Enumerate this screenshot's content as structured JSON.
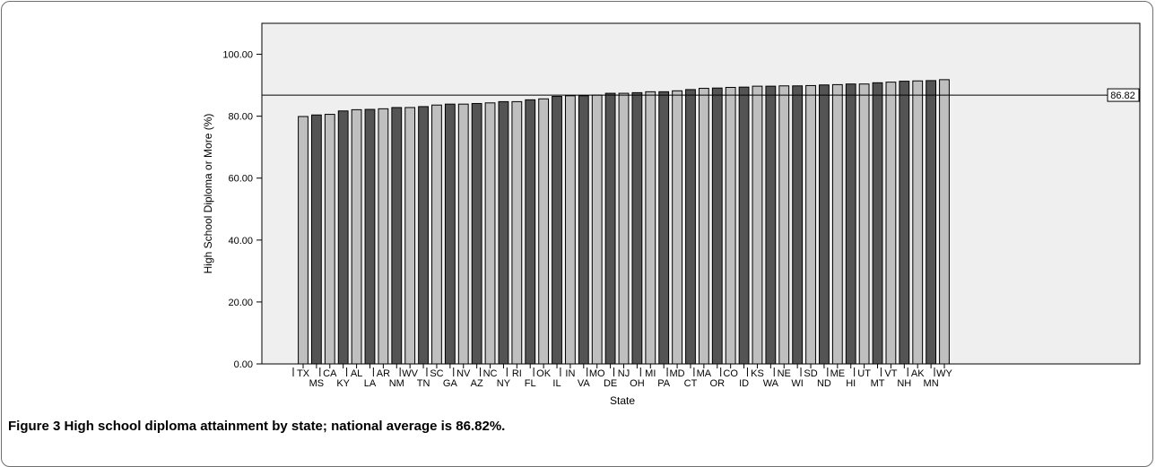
{
  "chart_data": {
    "type": "bar",
    "xlabel": "State",
    "ylabel": "High School Diploma or More (%)",
    "ylim": [
      0,
      110
    ],
    "yticks": [
      "0.00",
      "20.00",
      "40.00",
      "60.00",
      "80.00",
      "100.00"
    ],
    "categories": [
      "TX",
      "MS",
      "CA",
      "KY",
      "AL",
      "LA",
      "AR",
      "NM",
      "WV",
      "TN",
      "SC",
      "GA",
      "NV",
      "AZ",
      "NC",
      "NY",
      "RI",
      "FL",
      "OK",
      "IL",
      "IN",
      "VA",
      "MO",
      "DE",
      "NJ",
      "OH",
      "MI",
      "PA",
      "MD",
      "CT",
      "MA",
      "OR",
      "CO",
      "ID",
      "KS",
      "WA",
      "NE",
      "WI",
      "SD",
      "ND",
      "ME",
      "HI",
      "UT",
      "MT",
      "VT",
      "NH",
      "AK",
      "MN",
      "WY"
    ],
    "values": [
      79.9,
      80.4,
      80.6,
      81.7,
      82.1,
      82.2,
      82.4,
      82.8,
      82.8,
      83.1,
      83.6,
      83.9,
      83.9,
      84.1,
      84.3,
      84.7,
      84.7,
      85.3,
      85.6,
      86.4,
      86.6,
      86.6,
      86.8,
      87.4,
      87.4,
      87.6,
      87.9,
      87.9,
      88.2,
      88.6,
      89.0,
      89.1,
      89.3,
      89.4,
      89.7,
      89.7,
      89.8,
      89.8,
      89.9,
      90.1,
      90.2,
      90.4,
      90.4,
      90.8,
      91.0,
      91.3,
      91.4,
      91.5,
      91.8
    ],
    "bar_colors": [
      "#bfbfbf",
      "#545454"
    ],
    "reference_line": {
      "value": 86.82,
      "label": "86.82"
    },
    "grid": false,
    "plot_background": "#efefef"
  },
  "caption": {
    "label": "Figure 3",
    "text": "High school diploma attainment by state; national average is 86.82%."
  }
}
